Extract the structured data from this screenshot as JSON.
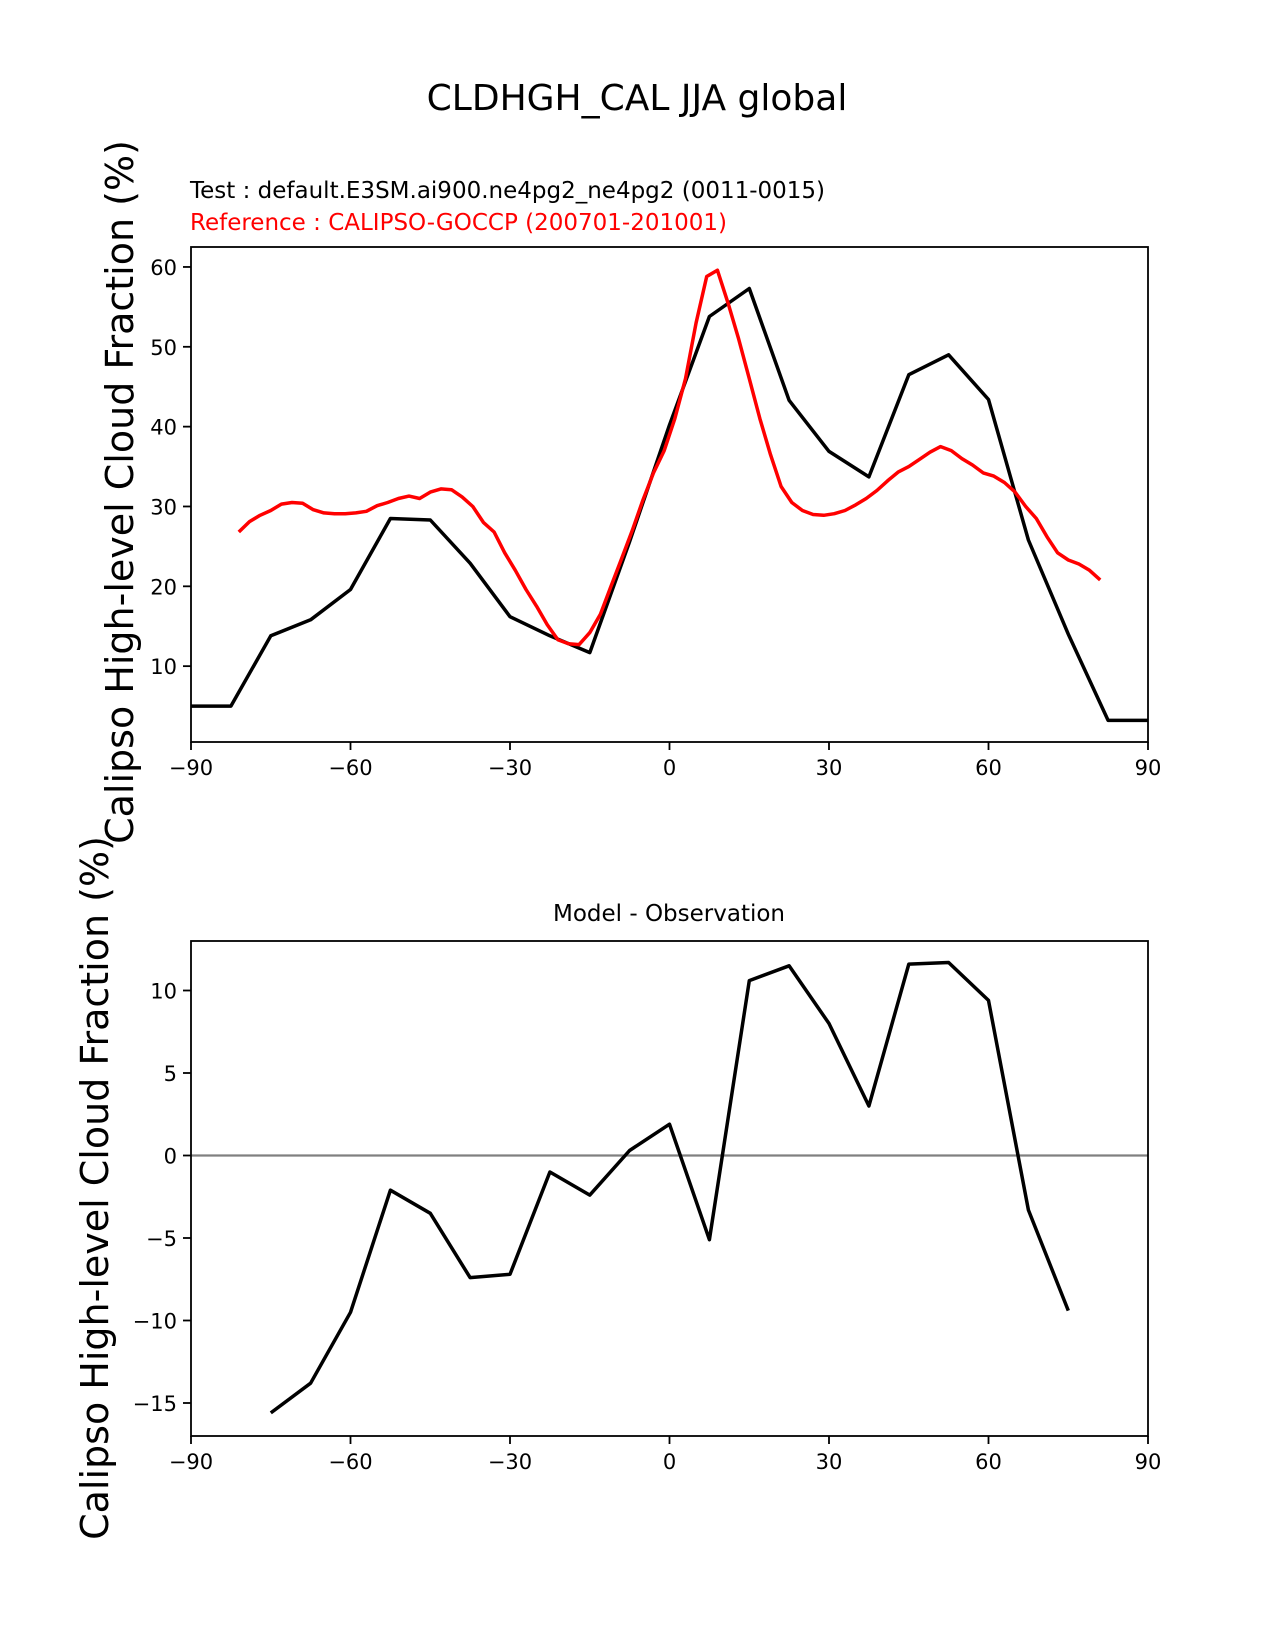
{
  "suptitle": "CLDHGH_CAL JJA global",
  "chart_data": [
    {
      "type": "line",
      "test_label": "Test : default.E3SM.ai900.ne4pg2_ne4pg2 (0011-0015)",
      "ref_label": "Reference : CALIPSO-GOCCP (200701-201001)",
      "ylabel": "Calipso High-level Cloud Fraction (%)",
      "xlim": [
        -90,
        90
      ],
      "ylim": [
        0.5,
        62.5
      ],
      "xticks": [
        -90,
        -60,
        -30,
        0,
        30,
        60,
        90
      ],
      "xtick_labels": [
        "−90",
        "−60",
        "−30",
        "0",
        "30",
        "60",
        "90"
      ],
      "yticks": [
        10,
        20,
        30,
        40,
        50,
        60
      ],
      "ytick_labels": [
        "10",
        "20",
        "30",
        "40",
        "50",
        "60"
      ],
      "colors": {
        "test": "#000000",
        "reference": "#ff0000"
      },
      "series": [
        {
          "key": "test",
          "x": [
            -90,
            -82.5,
            -75,
            -67.5,
            -60,
            -52.5,
            -45,
            -37.5,
            -30,
            -22.5,
            -15,
            -7.5,
            0,
            7.5,
            15,
            22.5,
            30,
            37.5,
            45,
            52.5,
            60,
            67.5,
            75,
            82.5,
            90
          ],
          "y": [
            5,
            5,
            13.8,
            15.8,
            19.6,
            28.5,
            28.3,
            22.9,
            16.2,
            13.8,
            11.7,
            25.6,
            40.2,
            53.8,
            57.3,
            43.3,
            36.9,
            33.7,
            46.5,
            49,
            43.4,
            25.8,
            14,
            3.2,
            3.2
          ]
        },
        {
          "key": "reference",
          "x": [
            -81,
            -79,
            -77,
            -75,
            -73,
            -71,
            -69,
            -67,
            -65,
            -63,
            -61,
            -59,
            -57,
            -55,
            -53,
            -51,
            -49,
            -47,
            -45,
            -43,
            -41,
            -39,
            -37,
            -35,
            -33,
            -31,
            -29,
            -27,
            -25,
            -23,
            -21,
            -19,
            -17,
            -15,
            -13,
            -11,
            -9,
            -7,
            -5,
            -3,
            -1,
            1,
            3,
            5,
            7,
            9,
            11,
            13,
            15,
            17,
            19,
            21,
            23,
            25,
            27,
            29,
            31,
            33,
            35,
            37,
            39,
            41,
            43,
            45,
            47,
            49,
            51,
            53,
            55,
            57,
            59,
            61,
            63,
            65,
            67,
            69,
            71,
            73,
            75,
            77,
            79,
            81
          ],
          "y": [
            26.8,
            28.1,
            28.9,
            29.5,
            30.3,
            30.5,
            30.4,
            29.6,
            29.2,
            29.1,
            29.1,
            29.2,
            29.4,
            30.1,
            30.5,
            31.0,
            31.3,
            31.0,
            31.8,
            32.2,
            32.1,
            31.2,
            30.0,
            28.0,
            26.8,
            24.2,
            22.0,
            19.6,
            17.5,
            15.2,
            13.3,
            12.8,
            12.7,
            14.2,
            16.5,
            20.0,
            23.5,
            27.0,
            30.8,
            34.2,
            37.0,
            41.0,
            46.0,
            53.0,
            58.8,
            59.6,
            55.5,
            51.0,
            46.0,
            41.0,
            36.5,
            32.5,
            30.5,
            29.5,
            29.0,
            28.9,
            29.1,
            29.5,
            30.2,
            31.0,
            32.0,
            33.2,
            34.3,
            35.0,
            35.9,
            36.8,
            37.5,
            37.0,
            36.0,
            35.2,
            34.2,
            33.8,
            33.0,
            31.8,
            30.0,
            28.5,
            26.2,
            24.2,
            23.3,
            22.8,
            22.0,
            20.8
          ]
        }
      ]
    },
    {
      "type": "line",
      "title": "Model - Observation",
      "ylabel": "Calipso High-level Cloud Fraction (%)",
      "xlim": [
        -90,
        90
      ],
      "ylim": [
        -17,
        13
      ],
      "xticks": [
        -90,
        -60,
        -30,
        0,
        30,
        60,
        90
      ],
      "xtick_labels": [
        "−90",
        "−60",
        "−30",
        "0",
        "30",
        "60",
        "90"
      ],
      "yticks": [
        -15,
        -10,
        -5,
        0,
        5,
        10
      ],
      "ytick_labels": [
        "−15",
        "−10",
        "−5",
        "0",
        "5",
        "10"
      ],
      "zero_line": {
        "y": 0,
        "color": "#808080"
      },
      "colors": {
        "difference": "#000000"
      },
      "series": [
        {
          "key": "difference",
          "x": [
            -75,
            -67.5,
            -60,
            -52.5,
            -45,
            -37.5,
            -30,
            -22.5,
            -15,
            -7.5,
            0,
            7.5,
            15,
            22.5,
            30,
            37.5,
            45,
            52.5,
            60,
            67.5,
            75
          ],
          "y": [
            -15.6,
            -13.8,
            -9.5,
            -2.1,
            -3.5,
            -7.4,
            -7.2,
            -1.0,
            -2.4,
            0.3,
            1.9,
            -5.1,
            10.6,
            11.5,
            8.0,
            3.0,
            11.6,
            11.7,
            9.4,
            -3.3,
            -9.4
          ]
        }
      ]
    }
  ]
}
